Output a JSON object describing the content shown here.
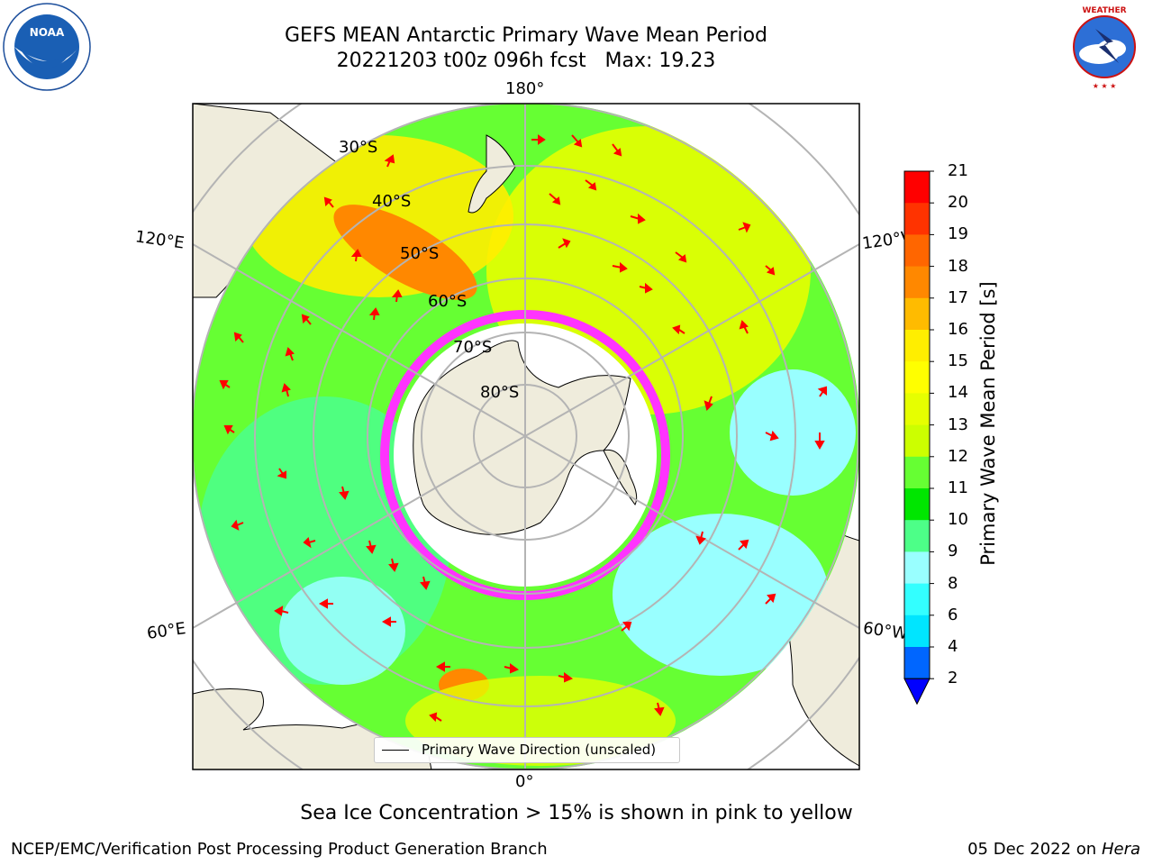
{
  "title_line1": "GEFS MEAN Antarctic Primary Wave Mean Period",
  "title_line2": "20221203 t00z 096h fcst   Max: 19.23",
  "caption": "Sea Ice Concentration > 15% is shown in pink to yellow",
  "credit": "NCEP/EMC/Verification Post Processing Product Generation Branch",
  "footer_date": "05 Dec 2022 on",
  "footer_host": "Hera",
  "logos": {
    "left": "NOAA",
    "right": "NATIONAL WEATHER SERVICE"
  },
  "map": {
    "projection": "south-polar-stereographic",
    "longitude_labels": {
      "top": "180°",
      "bottom": "0°",
      "left_upper": "120°E",
      "left_lower": "60°E",
      "right_upper": "120°W",
      "right_lower": "60°W"
    },
    "latitude_labels": [
      "30°S",
      "40°S",
      "50°S",
      "60°S",
      "70°S",
      "80°S"
    ],
    "legend": "Primary Wave Direction (unscaled)",
    "colors": {
      "land": "#efecdc",
      "ocean_mask": "#ffffff",
      "grid": "#b4b4b4",
      "arrow": "#ff0000"
    }
  },
  "colorbar": {
    "label": "Primary Wave Mean Period [s]",
    "ticks": [
      "21",
      "20",
      "19",
      "18",
      "17",
      "16",
      "15",
      "14",
      "13",
      "12",
      "11",
      "10",
      "9",
      "8",
      "6",
      "4",
      "2"
    ],
    "bands": [
      {
        "from": "2",
        "to": "4",
        "color": "#0066ff"
      },
      {
        "from": "4",
        "to": "6",
        "color": "#00e5ff"
      },
      {
        "from": "6",
        "to": "8",
        "color": "#33ffff"
      },
      {
        "from": "8",
        "to": "9",
        "color": "#99ffff"
      },
      {
        "from": "9",
        "to": "10",
        "color": "#4dff88"
      },
      {
        "from": "10",
        "to": "11",
        "color": "#00e600"
      },
      {
        "from": "11",
        "to": "12",
        "color": "#66ff33"
      },
      {
        "from": "12",
        "to": "13",
        "color": "#ccff00"
      },
      {
        "from": "13",
        "to": "14",
        "color": "#e6ff00"
      },
      {
        "from": "14",
        "to": "15",
        "color": "#ffff00"
      },
      {
        "from": "15",
        "to": "16",
        "color": "#ffee00"
      },
      {
        "from": "16",
        "to": "17",
        "color": "#ffbb00"
      },
      {
        "from": "17",
        "to": "18",
        "color": "#ff8800"
      },
      {
        "from": "18",
        "to": "19",
        "color": "#ff6600"
      },
      {
        "from": "19",
        "to": "20",
        "color": "#ff3300"
      },
      {
        "from": "20",
        "to": "21",
        "color": "#ff0000"
      }
    ],
    "extend_color": "#0000ff"
  }
}
